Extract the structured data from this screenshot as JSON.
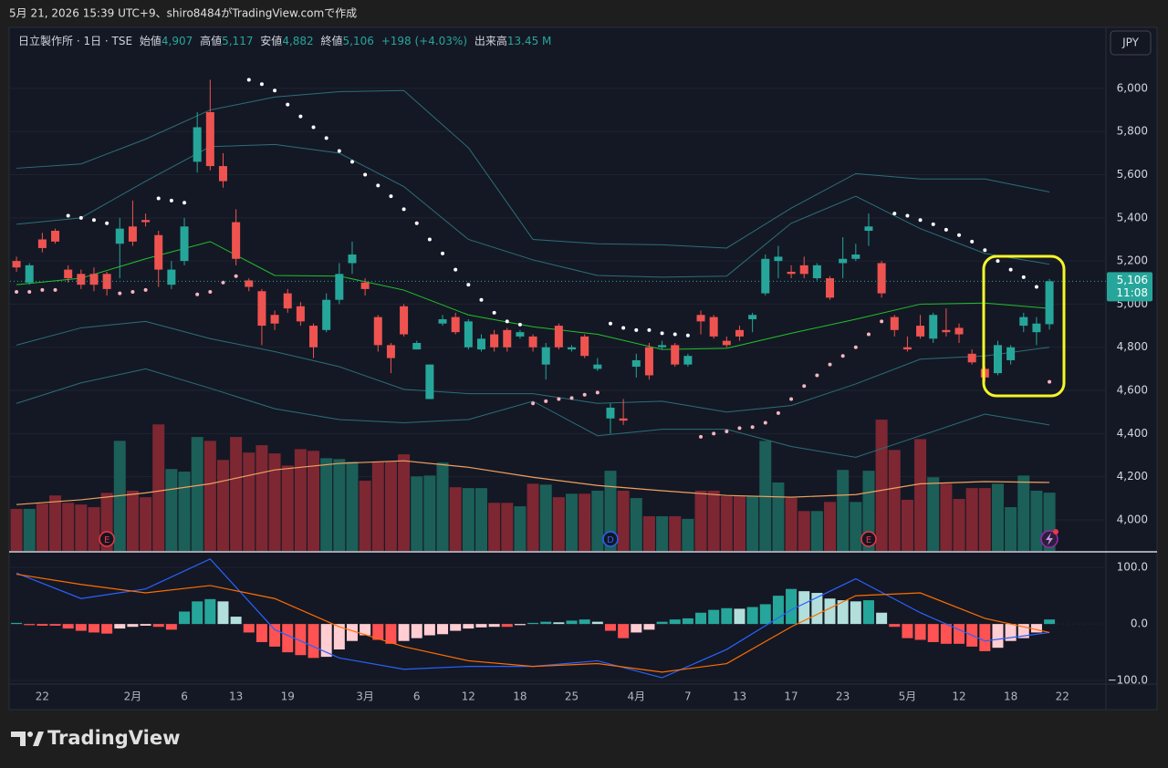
{
  "header": "5月 21, 2026 15:39 UTC+9、shiro8484がTradingView.comで作成",
  "legend": {
    "symbol": "日立製作所 · 1日 · TSE",
    "open_name": "始値",
    "open": "4,907",
    "high_name": "高値",
    "high": "5,117",
    "low_name": "安値",
    "low": "4,882",
    "close_name": "終値",
    "close": "5,106",
    "change": "+198 (+4.03%)",
    "volume_name": "出来高",
    "volume": "13.45 M"
  },
  "currency_button": "JPY",
  "price_box": {
    "price": "5,106",
    "countdown": "11:08"
  },
  "footer": {
    "brand": "TradingView"
  },
  "chart_data": [
    {
      "type": "candlestick",
      "up_color": "#26a69a",
      "down_color": "#ef5350",
      "ylim": [
        3856,
        6283
      ],
      "yticks": [
        {
          "value": 4000,
          "label": "4,000"
        },
        {
          "value": 4200,
          "label": "4,200"
        },
        {
          "value": 4400,
          "label": "4,400"
        },
        {
          "value": 4600,
          "label": "4,600"
        },
        {
          "value": 4800,
          "label": "4,800"
        },
        {
          "value": 5000,
          "label": "5,000"
        },
        {
          "value": 5200,
          "label": "5,200"
        },
        {
          "value": 5400,
          "label": "5,400"
        },
        {
          "value": 5600,
          "label": "5,600"
        },
        {
          "value": 5800,
          "label": "5,800"
        },
        {
          "value": 6000,
          "label": "6,000"
        }
      ],
      "grid": true,
      "categories": [
        null,
        null,
        "22",
        null,
        null,
        null,
        null,
        null,
        null,
        "2月",
        null,
        null,
        null,
        "6",
        null,
        null,
        null,
        "13",
        null,
        null,
        null,
        "19",
        null,
        null,
        null,
        null,
        null,
        "3月",
        null,
        null,
        null,
        "6",
        null,
        null,
        null,
        "12",
        null,
        null,
        null,
        "18",
        null,
        null,
        null,
        "25",
        null,
        null,
        null,
        null,
        "4月",
        null,
        null,
        null,
        "7",
        null,
        null,
        null,
        "13",
        null,
        null,
        null,
        "17",
        null,
        null,
        null,
        "23",
        null,
        null,
        null,
        null,
        "5月",
        null,
        null,
        null,
        "12",
        null,
        null,
        null,
        "18",
        null,
        null,
        null,
        "22"
      ],
      "open": [
        5200,
        5100,
        5300,
        5340,
        5160,
        5140,
        5140,
        5140,
        5280,
        5360,
        5390,
        5320,
        5090,
        5200,
        5660,
        5890,
        5640,
        5380,
        5110,
        5060,
        4950,
        5050,
        4990,
        4900,
        4880,
        5020,
        5190,
        5100,
        4940,
        4810,
        4990,
        4790,
        4560,
        4910,
        4940,
        4800,
        4790,
        4860,
        4880,
        4850,
        4850,
        4720,
        4900,
        4790,
        4850,
        4700,
        4470,
        4470,
        4710,
        4800,
        4800,
        4810,
        4720,
        4950,
        4940,
        4830,
        4880,
        4930,
        5050,
        5200,
        5150,
        5180,
        5120,
        5120,
        5190,
        5210,
        5340,
        5190,
        4940,
        4800,
        4900,
        4840,
        4880,
        4890,
        4770,
        4700,
        4680,
        4740,
        4900,
        4870,
        4907,
        null
      ],
      "high": [
        5220,
        5190,
        5330,
        5350,
        5180,
        5160,
        5170,
        5150,
        5400,
        5480,
        5420,
        5340,
        5200,
        5400,
        5890,
        6040,
        5700,
        5440,
        5120,
        5070,
        4970,
        5070,
        5010,
        4910,
        5050,
        5190,
        5290,
        5120,
        4950,
        4820,
        5000,
        4830,
        4720,
        4950,
        4960,
        4930,
        4860,
        4880,
        4890,
        4880,
        4860,
        4820,
        4910,
        4810,
        4860,
        4750,
        4540,
        4560,
        4770,
        4820,
        4830,
        4820,
        4770,
        4970,
        4950,
        4850,
        4900,
        4960,
        5230,
        5270,
        5180,
        5220,
        5190,
        5130,
        5310,
        5280,
        5420,
        5200,
        4950,
        4850,
        4950,
        4960,
        4980,
        4910,
        4790,
        4710,
        4830,
        4810,
        4960,
        4940,
        5117,
        null
      ],
      "low": [
        5150,
        5090,
        5240,
        5280,
        5100,
        5070,
        5060,
        5040,
        5120,
        5270,
        5360,
        5080,
        5070,
        5180,
        5610,
        5620,
        5540,
        5180,
        5060,
        4810,
        4880,
        4960,
        4900,
        4750,
        4870,
        5000,
        5140,
        5040,
        4780,
        4680,
        4850,
        4790,
        4560,
        4900,
        4860,
        4790,
        4780,
        4780,
        4780,
        4840,
        4780,
        4650,
        4790,
        4780,
        4750,
        4690,
        4400,
        4440,
        4660,
        4650,
        4790,
        4710,
        4710,
        4860,
        4840,
        4800,
        4830,
        4870,
        5040,
        5120,
        5120,
        5120,
        5110,
        5020,
        5120,
        5200,
        5270,
        5030,
        4850,
        4780,
        4840,
        4820,
        4850,
        4820,
        4720,
        4640,
        4670,
        4720,
        4870,
        4810,
        4882,
        null
      ],
      "close": [
        5170,
        5180,
        5260,
        5290,
        5120,
        5090,
        5090,
        5070,
        5350,
        5290,
        5380,
        5160,
        5160,
        5360,
        5820,
        5640,
        5570,
        5210,
        5080,
        4900,
        4910,
        4980,
        4920,
        4800,
        5020,
        5140,
        5230,
        5070,
        4810,
        4750,
        4860,
        4820,
        4720,
        4930,
        4870,
        4920,
        4840,
        4800,
        4800,
        4870,
        4800,
        4800,
        4800,
        4800,
        4760,
        4720,
        4520,
        4460,
        4740,
        4670,
        4810,
        4720,
        4760,
        4920,
        4850,
        4810,
        4850,
        4950,
        5210,
        5220,
        5140,
        5140,
        5180,
        5030,
        5210,
        5230,
        5360,
        5050,
        4880,
        4790,
        4850,
        4950,
        4870,
        4860,
        4730,
        4660,
        4810,
        4800,
        4940,
        4910,
        5106,
        null
      ],
      "series": [
        {
          "color": "#2b6f79",
          "x": [
            0,
            5,
            10,
            15,
            20,
            25,
            30,
            35,
            40,
            45,
            50,
            55,
            60,
            65,
            70,
            75,
            80
          ],
          "values": [
            5630,
            5650,
            5765,
            5900,
            5960,
            5985,
            5990,
            5725,
            5300,
            5280,
            5275,
            5260,
            5445,
            5605,
            5580,
            5580,
            5520
          ]
        },
        {
          "color": "#2b6f79",
          "x": [
            0,
            5,
            10,
            15,
            20,
            25,
            30,
            35,
            40,
            45,
            50,
            55,
            60,
            65,
            70,
            75,
            80
          ],
          "values": [
            5370,
            5400,
            5570,
            5730,
            5740,
            5700,
            5545,
            5300,
            5205,
            5133,
            5125,
            5130,
            5375,
            5500,
            5350,
            5235,
            5185
          ]
        },
        {
          "color": "#22c02e",
          "x": [
            0,
            5,
            10,
            15,
            20,
            25,
            30,
            35,
            40,
            45,
            50,
            55,
            60,
            65,
            70,
            75,
            80
          ],
          "values": [
            5090,
            5120,
            5210,
            5290,
            5133,
            5130,
            5065,
            4950,
            4895,
            4860,
            4790,
            4795,
            4865,
            4930,
            5000,
            5005,
            4980
          ]
        },
        {
          "color": "#2b6f79",
          "x": [
            0,
            5,
            10,
            15,
            20,
            25,
            30,
            35,
            40,
            45,
            50,
            55,
            60,
            65,
            70,
            75,
            80
          ],
          "values": [
            4810,
            4890,
            4920,
            4840,
            4780,
            4710,
            4605,
            4585,
            4585,
            4540,
            4550,
            4500,
            4530,
            4630,
            4745,
            4760,
            4800
          ]
        },
        {
          "color": "#2b6f79",
          "x": [
            0,
            5,
            10,
            15,
            20,
            25,
            30,
            35,
            40,
            45,
            50,
            55,
            60,
            65,
            70,
            75,
            80
          ],
          "values": [
            4540,
            4635,
            4700,
            4610,
            4515,
            4465,
            4450,
            4465,
            4550,
            4390,
            4420,
            4420,
            4340,
            4290,
            4390,
            4490,
            4440
          ]
        }
      ],
      "sar": {
        "color_above": "#ffffff",
        "color_below": "#f7b6c2",
        "values": [
          5057,
          5057,
          5066,
          5066,
          5410,
          5400,
          5390,
          5375,
          5050,
          5057,
          5066,
          5490,
          5480,
          5470,
          5045,
          5057,
          5100,
          5130,
          6040,
          6020,
          5990,
          5925,
          5870,
          5820,
          5770,
          5710,
          5660,
          5600,
          5550,
          5500,
          5440,
          5375,
          5300,
          5235,
          5160,
          5090,
          5020,
          4960,
          4920,
          4905,
          4540,
          4550,
          4560,
          4565,
          4580,
          4590,
          4910,
          4890,
          4880,
          4880,
          4865,
          4860,
          4855,
          4385,
          4400,
          4410,
          4425,
          4430,
          4450,
          4495,
          4560,
          4620,
          4670,
          4720,
          4760,
          4800,
          4860,
          4920,
          5420,
          5410,
          5390,
          5370,
          5345,
          5320,
          5290,
          5250,
          5200,
          5160,
          5125,
          5080,
          4640,
          null
        ]
      },
      "volume": {
        "ylim": [
          0,
          40
        ],
        "up_color": "#1b5f58",
        "down_color": "#7d2733",
        "values": [
          9.7,
          9.7,
          10.9,
          12.8,
          11.1,
          10.7,
          10.1,
          13.4,
          25.4,
          13.9,
          12.4,
          29.2,
          18.9,
          18.3,
          26.3,
          25.4,
          21.0,
          26.3,
          22.7,
          24.4,
          22.5,
          19.7,
          23.5,
          23.1,
          21.4,
          21.2,
          20.6,
          16.2,
          20.6,
          20.6,
          22.3,
          17.2,
          17.4,
          20.4,
          14.7,
          14.5,
          14.5,
          11.1,
          11.1,
          10.3,
          15.5,
          15.3,
          12.4,
          13.2,
          13.2,
          13.9,
          18.5,
          13.9,
          12.2,
          8.0,
          8.0,
          8.0,
          7.4,
          13.9,
          13.9,
          12.6,
          12.6,
          12.6,
          25.4,
          15.8,
          12.2,
          9.2,
          9.2,
          11.3,
          18.7,
          11.3,
          18.5,
          30.3,
          23.3,
          11.8,
          25.8,
          17.0,
          15.5,
          12.0,
          14.5,
          14.5,
          15.5,
          10.1,
          17.4,
          13.9,
          13.45,
          null
        ]
      },
      "volume_ma": {
        "color": "#f0a060",
        "x": [
          0,
          5,
          10,
          15,
          20,
          25,
          30,
          35,
          40,
          45,
          50,
          55,
          60,
          65,
          70,
          75,
          80
        ],
        "values": [
          10.7,
          11.8,
          13.4,
          15.5,
          18.7,
          20.2,
          20.8,
          19.3,
          17.0,
          15.1,
          13.9,
          12.8,
          12.4,
          13.0,
          15.5,
          16.0,
          15.8
        ]
      },
      "events": [
        null,
        null,
        null,
        null,
        null,
        null,
        null,
        {
          "label": "E",
          "color": "#f23645"
        },
        null,
        null,
        null,
        null,
        null,
        null,
        null,
        null,
        null,
        null,
        null,
        null,
        null,
        null,
        null,
        null,
        null,
        null,
        null,
        null,
        null,
        null,
        null,
        null,
        null,
        null,
        null,
        null,
        null,
        null,
        null,
        null,
        null,
        null,
        null,
        null,
        null,
        null,
        {
          "label": "D",
          "color": "#2962ff"
        },
        null,
        null,
        null,
        null,
        null,
        null,
        null,
        null,
        null,
        null,
        null,
        null,
        null,
        null,
        null,
        null,
        null,
        null,
        null,
        {
          "label": "E",
          "color": "#f23645"
        },
        null,
        null,
        null,
        null,
        null,
        null,
        null,
        null,
        null,
        null,
        null,
        null,
        null,
        null,
        null
      ]
    },
    {
      "type": "macd",
      "ylim": [
        -103,
        126
      ],
      "yticks": [
        {
          "value": 100,
          "label": "100.0"
        },
        {
          "value": 0,
          "label": "0.0"
        },
        {
          "value": -100,
          "label": "−100.0"
        }
      ],
      "colors": {
        "up_grow": "#26a69a",
        "up_fall": "#b2dfdb",
        "down_grow": "#ff5252",
        "down_fall": "#ffcdd2"
      },
      "values": [
        2,
        -2,
        -3,
        -3,
        -8,
        -12,
        -15,
        -17,
        -8,
        -5,
        -3,
        -5,
        -10,
        22,
        40,
        44,
        40,
        13,
        -15,
        -32,
        -40,
        -50,
        -55,
        -60,
        -58,
        -45,
        -30,
        -20,
        -28,
        -35,
        -30,
        -25,
        -20,
        -18,
        -12,
        -8,
        -6,
        -5,
        -5,
        -2,
        2,
        4,
        3,
        6,
        8,
        4,
        -12,
        -25,
        -15,
        -10,
        4,
        8,
        10,
        20,
        25,
        28,
        27,
        30,
        35,
        50,
        62,
        58,
        55,
        45,
        42,
        40,
        42,
        20,
        -5,
        -25,
        -28,
        -32,
        -35,
        -35,
        -40,
        -48,
        -42,
        -30,
        -25,
        -15,
        8,
        null
      ],
      "series": [
        {
          "color": "#2962ff",
          "x": [
            0,
            5,
            10,
            15,
            20,
            25,
            30,
            35,
            40,
            45,
            50,
            55,
            60,
            65,
            70,
            75,
            80
          ],
          "values": [
            90,
            45,
            62,
            115,
            -10,
            -60,
            -80,
            -75,
            -75,
            -65,
            -95,
            -45,
            25,
            80,
            20,
            -30,
            -15
          ]
        },
        {
          "color": "#ff6d00",
          "x": [
            0,
            5,
            10,
            15,
            20,
            25,
            30,
            35,
            40,
            45,
            50,
            55,
            60,
            65,
            70,
            75,
            80
          ],
          "values": [
            88,
            70,
            55,
            68,
            45,
            -5,
            -40,
            -65,
            -75,
            -70,
            -85,
            -70,
            -5,
            50,
            55,
            10,
            -15
          ]
        }
      ]
    }
  ]
}
